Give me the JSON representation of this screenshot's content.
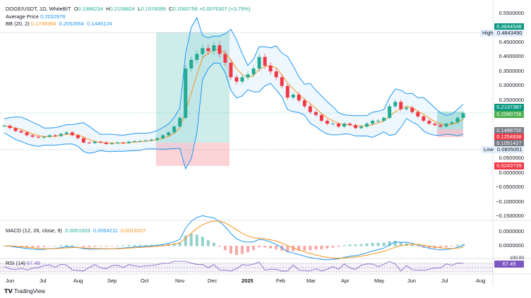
{
  "header": {
    "symbol": "DOGE/USDT, 1D, WhiteBIT",
    "o_label": "O",
    "open": "0.1986234",
    "h_label": "H",
    "high": "0.2108824",
    "l_label": "L",
    "low": "0.1976099",
    "c_label": "C",
    "close": "0.2060756",
    "change": "+0.0075307 (+3.79%)"
  },
  "avg_price": {
    "label": "Average Price",
    "value": "0.2032978"
  },
  "bb": {
    "label": "BB (20, 2)",
    "basis": "0.1749394",
    "upper": "0.2052664",
    "lower": "0.1446124"
  },
  "price_axis": [
    "0.5500000",
    "0.4500000",
    "0.4000000",
    "0.3500000",
    "0.3000000",
    "0.2500000",
    "0.0500000",
    "0.0000000",
    "−0.0500000",
    "−0.1000000",
    "−0.1500000"
  ],
  "price_tags": {
    "tp_high": "0.4844548",
    "high_label": "High",
    "high": "0.4843490",
    "bb_upper": "0.2137387",
    "last": "0.2060756",
    "bb_basis": "0.1488700",
    "sl_entry": "0.1254838",
    "bb_lower": "0.1051427",
    "low_label": "Low",
    "low": "0.0805051",
    "sl_low": "0.0243739"
  },
  "macd": {
    "label": "MACD (12, 26, close, 9)",
    "hist": "0.0051003",
    "macd": "0.0064211",
    "signal": "0.0013207",
    "axis": [
      "0.0500000",
      "0.0000000"
    ]
  },
  "rsi": {
    "label": "RSI (14)",
    "value": "67.49",
    "axis_top": "100.00"
  },
  "time_axis": [
    "Jun",
    "Jul",
    "Aug",
    "Sep",
    "Oct",
    "Nov",
    "Dec",
    "2025",
    "Feb",
    "Mar",
    "Apr",
    "May",
    "Jun",
    "Jul",
    "Aug"
  ],
  "brand": "TradingView",
  "colors": {
    "up": "#22ab94",
    "down": "#f23645",
    "bb": "#2196f3",
    "basis": "#f7931a",
    "rsi": "#7e57c2"
  },
  "chart_data": {
    "type": "candlestick",
    "interval": "5-day sampled closes (approx.)",
    "start": "2024-06-01",
    "closes": [
      0.163,
      0.155,
      0.145,
      0.14,
      0.13,
      0.125,
      0.122,
      0.125,
      0.13,
      0.128,
      0.135,
      0.14,
      0.13,
      0.12,
      0.105,
      0.103,
      0.108,
      0.105,
      0.1,
      0.102,
      0.105,
      0.103,
      0.108,
      0.11,
      0.11,
      0.112,
      0.115,
      0.12,
      0.13,
      0.14,
      0.16,
      0.19,
      0.36,
      0.39,
      0.41,
      0.43,
      0.42,
      0.44,
      0.41,
      0.38,
      0.33,
      0.315,
      0.33,
      0.34,
      0.36,
      0.4,
      0.37,
      0.35,
      0.33,
      0.3,
      0.26,
      0.27,
      0.25,
      0.23,
      0.21,
      0.2,
      0.18,
      0.17,
      0.17,
      0.16,
      0.17,
      0.165,
      0.155,
      0.16,
      0.17,
      0.18,
      0.18,
      0.19,
      0.23,
      0.245,
      0.22,
      0.225,
      0.21,
      0.195,
      0.18,
      0.17,
      0.165,
      0.16,
      0.17,
      0.175,
      0.19,
      0.206
    ],
    "ylim": [
      -0.17,
      0.57
    ]
  }
}
